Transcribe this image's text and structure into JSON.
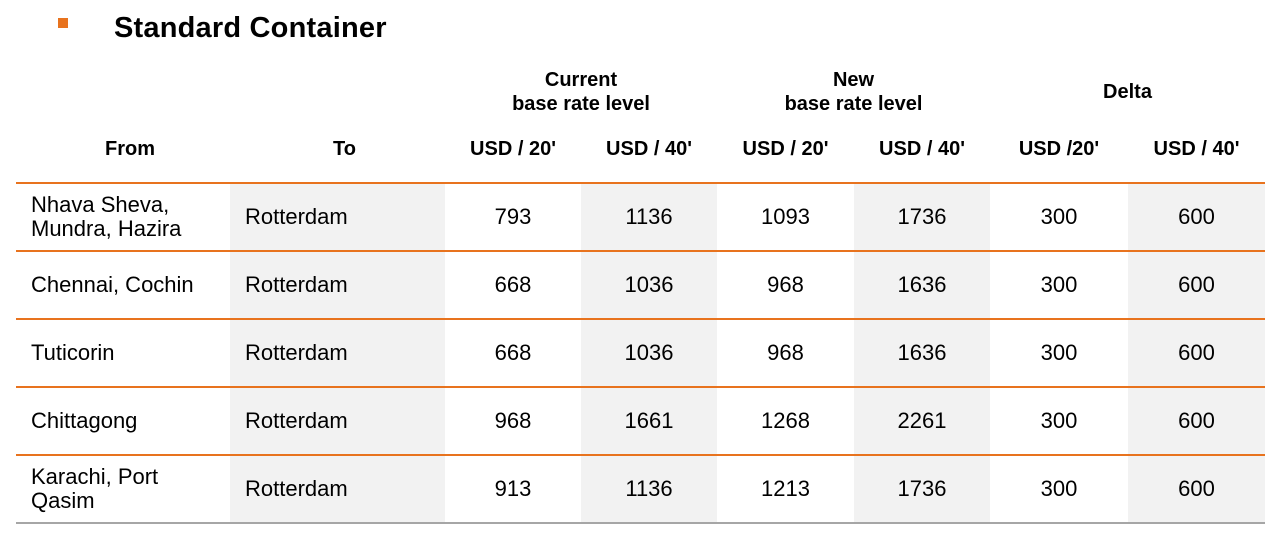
{
  "title": "Standard Container",
  "colors": {
    "accent": "#e8731e",
    "shade": "#f2f2f2",
    "bottom_rule": "#a6a6a6"
  },
  "header": {
    "groups": {
      "current": "Current\nbase rate level",
      "new": "New\nbase rate level",
      "delta": "Delta"
    },
    "columns": {
      "from": "From",
      "to": "To",
      "cur20": "USD / 20'",
      "cur40": "USD / 40'",
      "new20": "USD / 20'",
      "new40": "USD / 40'",
      "d20": "USD /20'",
      "d40": "USD / 40'"
    }
  },
  "rows": [
    {
      "from": "Nhava Sheva,\nMundra, Hazira",
      "to": "Rotterdam",
      "cur20": "793",
      "cur40": "1136",
      "new20": "1093",
      "new40": "1736",
      "d20": "300",
      "d40": "600"
    },
    {
      "from": "Chennai, Cochin",
      "to": "Rotterdam",
      "cur20": "668",
      "cur40": "1036",
      "new20": "968",
      "new40": "1636",
      "d20": "300",
      "d40": "600"
    },
    {
      "from": "Tuticorin",
      "to": "Rotterdam",
      "cur20": "668",
      "cur40": "1036",
      "new20": "968",
      "new40": "1636",
      "d20": "300",
      "d40": "600"
    },
    {
      "from": "Chittagong",
      "to": "Rotterdam",
      "cur20": "968",
      "cur40": "1661",
      "new20": "1268",
      "new40": "2261",
      "d20": "300",
      "d40": "600"
    },
    {
      "from": "Karachi, Port\nQasim",
      "to": "Rotterdam",
      "cur20": "913",
      "cur40": "1136",
      "new20": "1213",
      "new40": "1736",
      "d20": "300",
      "d40": "600"
    }
  ]
}
